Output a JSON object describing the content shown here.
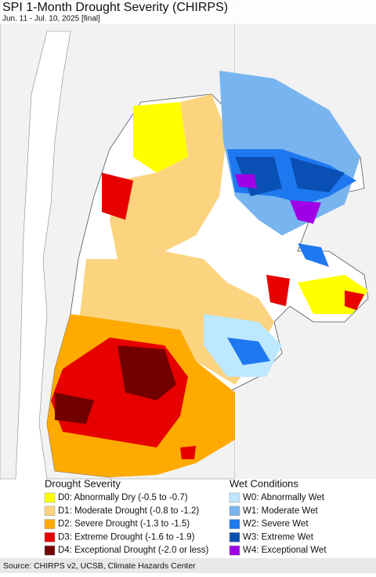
{
  "header": {
    "title": "SPI 1-Month Drought Severity (CHIRPS)",
    "subtitle": "Jun. 11 - Jul. 10, 2025 [final]"
  },
  "legend": {
    "drought": {
      "title": "Drought Severity",
      "items": [
        {
          "label": "D0: Abnormally Dry (-0.5 to -0.7)",
          "color": "#ffff00"
        },
        {
          "label": "D1: Moderate Drought (-0.8 to -1.2)",
          "color": "#fcd37f"
        },
        {
          "label": "D2: Severe Drought (-1.3 to -1.5)",
          "color": "#ffaa00"
        },
        {
          "label": "D3: Extreme Drought (-1.6 to -1.9)",
          "color": "#e60000"
        },
        {
          "label": "D4: Exceptional Drought (-2.0 or less)",
          "color": "#730000"
        }
      ]
    },
    "wet": {
      "title": "Wet Conditions",
      "items": [
        {
          "label": "W0: Abnormally Wet",
          "color": "#bde8ff"
        },
        {
          "label": "W1: Moderate Wet",
          "color": "#78b4f0"
        },
        {
          "label": "W2: Severe Wet",
          "color": "#1e78f0"
        },
        {
          "label": "W3: Extreme Wet",
          "color": "#0a4fb4"
        },
        {
          "label": "W4: Exceptional Wet",
          "color": "#a000e6"
        }
      ]
    }
  },
  "footer": {
    "source": "Source: CHIRPS v2, UCSB, Climate Hazards Center"
  }
}
